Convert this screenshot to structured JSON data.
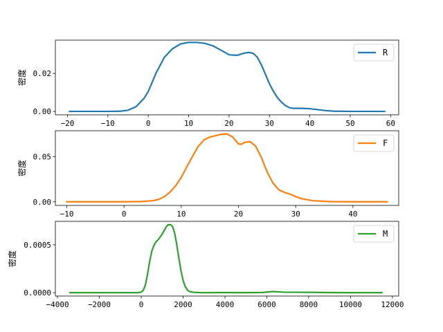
{
  "chart_data": [
    {
      "type": "line",
      "ylabel": "密度",
      "xlim": [
        -23,
        62
      ],
      "ylim": [
        -0.0018,
        0.0375
      ],
      "xticks": [
        -20,
        -10,
        0,
        10,
        20,
        30,
        40,
        50,
        60
      ],
      "xtick_labels": [
        "−20",
        "−10",
        "0",
        "10",
        "20",
        "30",
        "40",
        "50",
        "60"
      ],
      "yticks": [
        0.0,
        0.02
      ],
      "ytick_labels": [
        "0.00",
        "0.02"
      ],
      "legend_position": "top-right",
      "series": [
        {
          "name": "R",
          "color": "#1f77b4",
          "x": [
            -19.5,
            -15,
            -10,
            -7,
            -5,
            -3,
            -1,
            0,
            1,
            2,
            3,
            4,
            6,
            8,
            10,
            12,
            14,
            16,
            18,
            20,
            22,
            24,
            25,
            26,
            27,
            28,
            29,
            30,
            31,
            32,
            33,
            34,
            35,
            36,
            38,
            40,
            42,
            44,
            46,
            50,
            55,
            58.5
          ],
          "y": [
            0.0,
            0.0,
            0.0,
            0.0001,
            0.0006,
            0.0025,
            0.007,
            0.0105,
            0.0155,
            0.0205,
            0.0245,
            0.0285,
            0.033,
            0.0355,
            0.0363,
            0.0363,
            0.0358,
            0.0345,
            0.0322,
            0.0298,
            0.0295,
            0.0308,
            0.031,
            0.0305,
            0.0285,
            0.0245,
            0.0195,
            0.0145,
            0.0105,
            0.0072,
            0.0048,
            0.003,
            0.0019,
            0.0016,
            0.0016,
            0.0014,
            0.0009,
            0.0004,
            0.0001,
            0.0,
            0.0,
            0.0
          ]
        }
      ]
    },
    {
      "type": "line",
      "ylabel": "密度",
      "xlim": [
        -12,
        48
      ],
      "ylim": [
        -0.004,
        0.0785
      ],
      "xticks": [
        -10,
        0,
        10,
        20,
        30,
        40
      ],
      "xtick_labels": [
        "−10",
        "0",
        "10",
        "20",
        "30",
        "40"
      ],
      "yticks": [
        0.0,
        0.05
      ],
      "ytick_labels": [
        "0.00",
        "0.05"
      ],
      "legend_position": "top-right",
      "series": [
        {
          "name": "F",
          "color": "#ff7f0e",
          "x": [
            -10,
            -5,
            0,
            3,
            5,
            6,
            7,
            8,
            9,
            10,
            11,
            12,
            13,
            14,
            15,
            16,
            17,
            18,
            19,
            19.5,
            20,
            20.5,
            21,
            22,
            23,
            24,
            25,
            26,
            27,
            28,
            29,
            30,
            31,
            33,
            36,
            40,
            46
          ],
          "y": [
            0.0,
            0.0,
            0.0,
            0.0003,
            0.0012,
            0.0025,
            0.0055,
            0.0105,
            0.0175,
            0.027,
            0.039,
            0.0505,
            0.0615,
            0.0685,
            0.0715,
            0.073,
            0.0745,
            0.075,
            0.0715,
            0.0675,
            0.064,
            0.0635,
            0.0655,
            0.0665,
            0.0615,
            0.049,
            0.033,
            0.021,
            0.0135,
            0.0105,
            0.0085,
            0.0058,
            0.0035,
            0.0012,
            0.0002,
            0.0,
            0.0
          ]
        }
      ]
    },
    {
      "type": "line",
      "ylabel": "密度",
      "xlim": [
        -4100,
        12300
      ],
      "ylim": [
        -3.5e-05,
        0.000745
      ],
      "xticks": [
        -4000,
        -2000,
        0,
        2000,
        4000,
        6000,
        8000,
        10000,
        12000
      ],
      "xtick_labels": [
        "−4000",
        "−2000",
        "0",
        "2000",
        "4000",
        "6000",
        "8000",
        "10000",
        "12000"
      ],
      "yticks": [
        0.0,
        0.0005
      ],
      "ytick_labels": [
        "0.0000",
        "0.0005"
      ],
      "legend_position": "top-right",
      "series": [
        {
          "name": "M",
          "color": "#2ca02c",
          "x": [
            -3400,
            -1000,
            -200,
            0,
            100,
            200,
            300,
            400,
            500,
            600,
            700,
            800,
            900,
            1000,
            1100,
            1200,
            1300,
            1400,
            1500,
            1600,
            1700,
            1800,
            1900,
            2000,
            2100,
            2200,
            2300,
            2500,
            2800,
            3000,
            4000,
            5000,
            5800,
            6300,
            6800,
            8000,
            9000,
            10000,
            11500
          ],
          "y": [
            0.0,
            0.0,
            0.0,
            5e-06,
            2.5e-05,
            8e-05,
            0.00019,
            0.00032,
            0.00043,
            0.00049,
            0.00053,
            0.00055,
            0.00058,
            0.00061,
            0.00065,
            0.00069,
            0.00071,
            0.00071,
            0.00069,
            0.00062,
            0.0005,
            0.00036,
            0.00023,
            0.00013,
            6.5e-05,
            3e-05,
            1.2e-05,
            4e-06,
            1e-06,
            0.0,
            1e-06,
            0.0,
            2e-06,
            1.2e-05,
            5e-06,
            4e-06,
            1e-06,
            0.0,
            0.0
          ]
        }
      ]
    }
  ]
}
